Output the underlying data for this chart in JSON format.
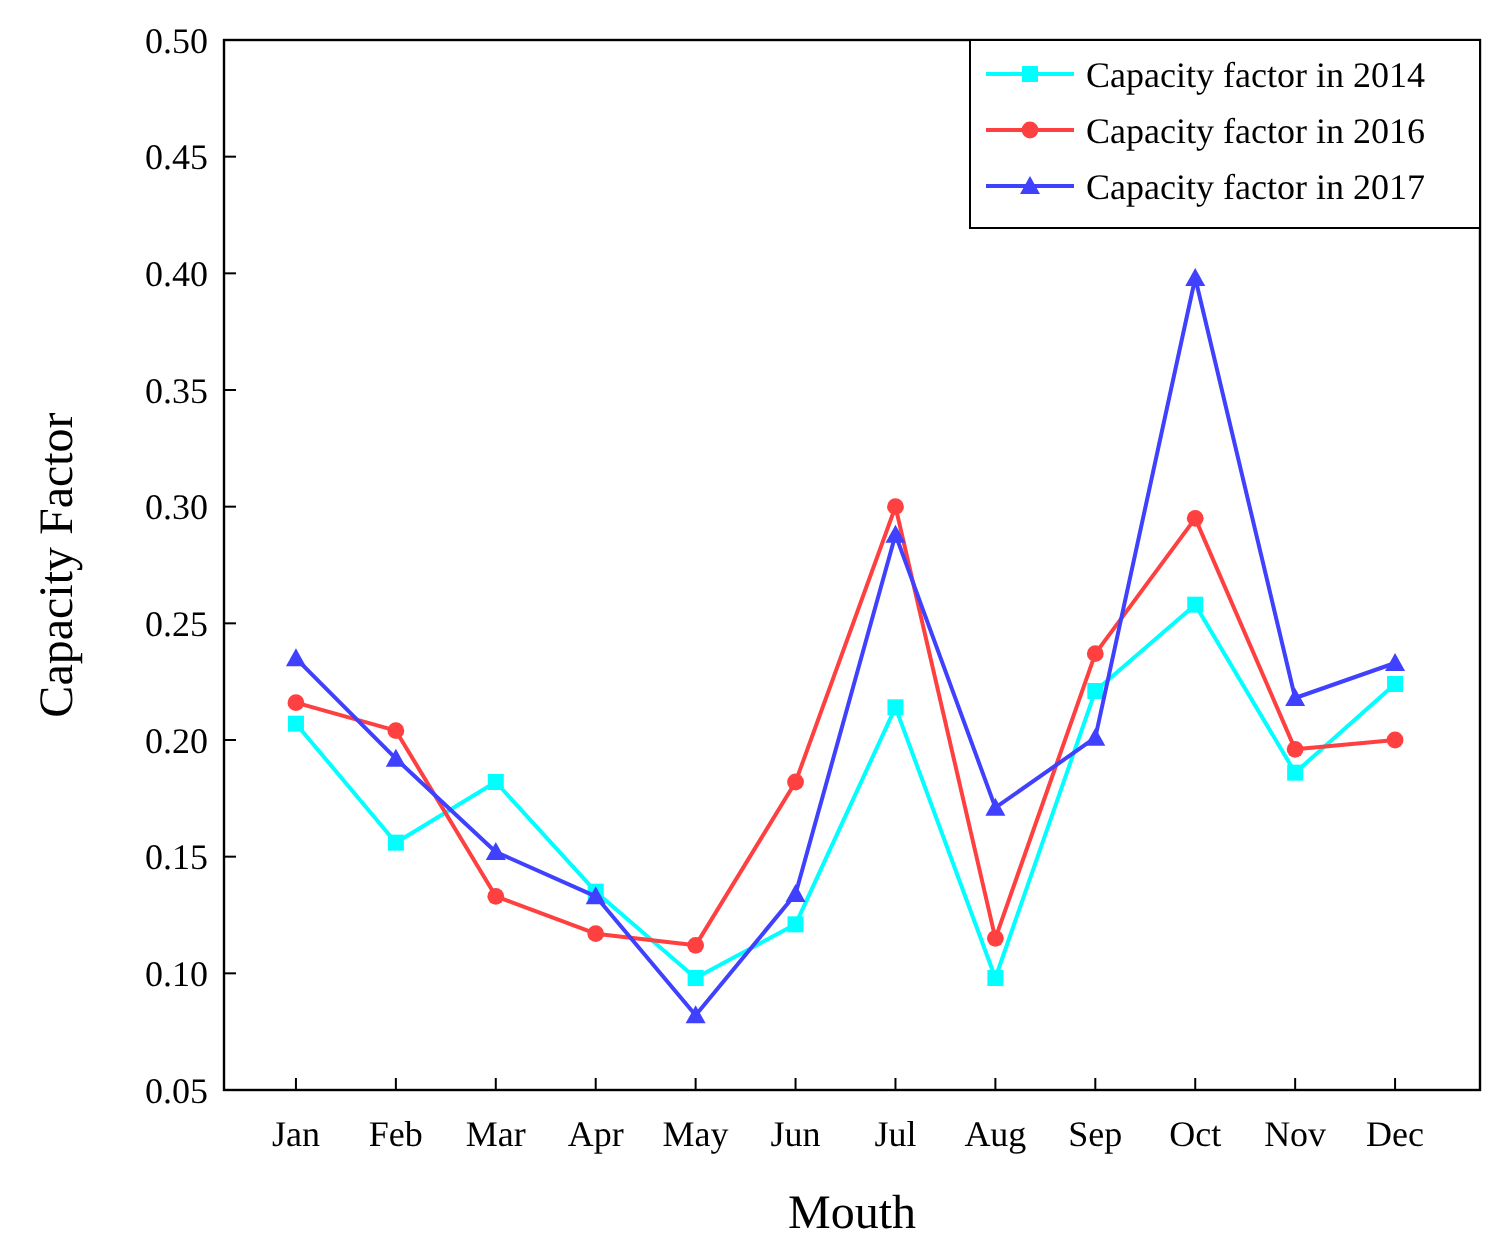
{
  "chart_data": {
    "type": "line",
    "xlabel": "Mouth",
    "ylabel": "Capacity Factor",
    "categories": [
      "Jan",
      "Feb",
      "Mar",
      "Apr",
      "May",
      "Jun",
      "Jul",
      "Aug",
      "Sep",
      "Oct",
      "Nov",
      "Dec"
    ],
    "ylim": [
      0.05,
      0.5
    ],
    "yticks": [
      {
        "value": 0.05,
        "label": "0.05"
      },
      {
        "value": 0.1,
        "label": "0.10"
      },
      {
        "value": 0.15,
        "label": "0.15"
      },
      {
        "value": 0.2,
        "label": "0.20"
      },
      {
        "value": 0.25,
        "label": "0.25"
      },
      {
        "value": 0.3,
        "label": "0.30"
      },
      {
        "value": 0.35,
        "label": "0.35"
      },
      {
        "value": 0.4,
        "label": "0.40"
      },
      {
        "value": 0.45,
        "label": "0.45"
      },
      {
        "value": 0.5,
        "label": "0.50"
      }
    ],
    "legend": "top right",
    "grid": false,
    "line_style": "solid",
    "series": [
      {
        "name": "Capacity factor in 2014",
        "color": "#00ffff",
        "marker": "square",
        "values": [
          0.207,
          0.156,
          0.182,
          0.135,
          0.098,
          0.121,
          0.214,
          0.098,
          0.221,
          0.258,
          0.186,
          0.224
        ]
      },
      {
        "name": "Capacity factor in 2016",
        "color": "#ff4040",
        "marker": "circle",
        "values": [
          0.216,
          0.204,
          0.133,
          0.117,
          0.112,
          0.182,
          0.3,
          0.115,
          0.237,
          0.295,
          0.196,
          0.2
        ]
      },
      {
        "name": "Capacity factor in 2017",
        "color": "#4040ff",
        "marker": "triangle",
        "values": [
          0.235,
          0.192,
          0.152,
          0.133,
          0.082,
          0.134,
          0.288,
          0.171,
          0.201,
          0.398,
          0.218,
          0.233
        ]
      }
    ]
  }
}
